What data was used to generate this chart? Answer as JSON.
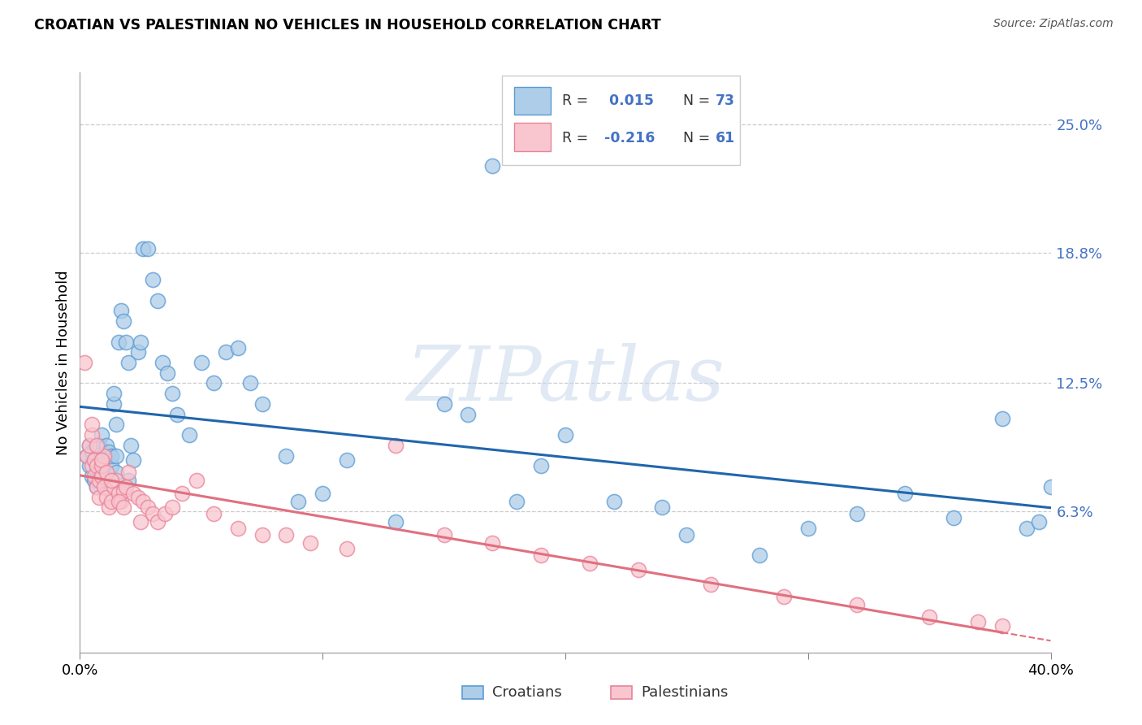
{
  "title": "CROATIAN VS PALESTINIAN NO VEHICLES IN HOUSEHOLD CORRELATION CHART",
  "source": "Source: ZipAtlas.com",
  "ylabel": "No Vehicles in Household",
  "ytick_values": [
    0.063,
    0.125,
    0.188,
    0.25
  ],
  "ytick_labels": [
    "6.3%",
    "12.5%",
    "18.8%",
    "25.0%"
  ],
  "xlim": [
    0.0,
    0.4
  ],
  "ylim": [
    -0.005,
    0.275
  ],
  "watermark_text": "ZIPatlas",
  "croatian_color_face": "#aecde8",
  "croatian_color_edge": "#5b9bd5",
  "palestinian_color_face": "#f9c6cf",
  "palestinian_color_edge": "#e8849a",
  "trend_croatian_color": "#2166ac",
  "trend_palestinian_color": "#e07080",
  "legend_R_color": "#4472c4",
  "legend_N_color": "#333333",
  "croatian_x": [
    0.003,
    0.004,
    0.004,
    0.005,
    0.005,
    0.006,
    0.006,
    0.007,
    0.007,
    0.008,
    0.008,
    0.009,
    0.009,
    0.01,
    0.01,
    0.011,
    0.012,
    0.012,
    0.013,
    0.013,
    0.014,
    0.014,
    0.015,
    0.015,
    0.016,
    0.017,
    0.018,
    0.019,
    0.02,
    0.021,
    0.022,
    0.024,
    0.025,
    0.026,
    0.028,
    0.03,
    0.032,
    0.034,
    0.036,
    0.038,
    0.04,
    0.045,
    0.05,
    0.055,
    0.06,
    0.065,
    0.07,
    0.075,
    0.085,
    0.09,
    0.1,
    0.11,
    0.13,
    0.15,
    0.16,
    0.17,
    0.18,
    0.19,
    0.2,
    0.22,
    0.24,
    0.25,
    0.28,
    0.3,
    0.32,
    0.34,
    0.36,
    0.38,
    0.39,
    0.395,
    0.4,
    0.015,
    0.02
  ],
  "croatian_y": [
    0.09,
    0.085,
    0.095,
    0.08,
    0.092,
    0.078,
    0.088,
    0.075,
    0.09,
    0.082,
    0.095,
    0.086,
    0.1,
    0.078,
    0.09,
    0.095,
    0.08,
    0.092,
    0.085,
    0.09,
    0.115,
    0.12,
    0.105,
    0.09,
    0.145,
    0.16,
    0.155,
    0.145,
    0.135,
    0.095,
    0.088,
    0.14,
    0.145,
    0.19,
    0.19,
    0.175,
    0.165,
    0.135,
    0.13,
    0.12,
    0.11,
    0.1,
    0.135,
    0.125,
    0.14,
    0.142,
    0.125,
    0.115,
    0.09,
    0.068,
    0.072,
    0.088,
    0.058,
    0.115,
    0.11,
    0.23,
    0.068,
    0.085,
    0.1,
    0.068,
    0.065,
    0.052,
    0.042,
    0.055,
    0.062,
    0.072,
    0.06,
    0.108,
    0.055,
    0.058,
    0.075,
    0.082,
    0.078
  ],
  "palestinian_x": [
    0.002,
    0.003,
    0.004,
    0.005,
    0.005,
    0.006,
    0.006,
    0.007,
    0.007,
    0.008,
    0.008,
    0.009,
    0.009,
    0.01,
    0.01,
    0.011,
    0.012,
    0.013,
    0.014,
    0.015,
    0.016,
    0.017,
    0.018,
    0.019,
    0.02,
    0.022,
    0.024,
    0.026,
    0.028,
    0.03,
    0.032,
    0.035,
    0.038,
    0.042,
    0.048,
    0.055,
    0.065,
    0.075,
    0.085,
    0.095,
    0.11,
    0.13,
    0.15,
    0.17,
    0.19,
    0.21,
    0.23,
    0.26,
    0.29,
    0.32,
    0.35,
    0.37,
    0.38,
    0.005,
    0.007,
    0.009,
    0.011,
    0.013,
    0.016,
    0.018,
    0.025
  ],
  "palestinian_y": [
    0.135,
    0.09,
    0.095,
    0.085,
    0.1,
    0.08,
    0.088,
    0.085,
    0.075,
    0.07,
    0.078,
    0.08,
    0.085,
    0.09,
    0.075,
    0.07,
    0.065,
    0.068,
    0.075,
    0.078,
    0.072,
    0.068,
    0.073,
    0.075,
    0.082,
    0.072,
    0.07,
    0.068,
    0.065,
    0.062,
    0.058,
    0.062,
    0.065,
    0.072,
    0.078,
    0.062,
    0.055,
    0.052,
    0.052,
    0.048,
    0.045,
    0.095,
    0.052,
    0.048,
    0.042,
    0.038,
    0.035,
    0.028,
    0.022,
    0.018,
    0.012,
    0.01,
    0.008,
    0.105,
    0.095,
    0.088,
    0.082,
    0.078,
    0.068,
    0.065,
    0.058
  ]
}
